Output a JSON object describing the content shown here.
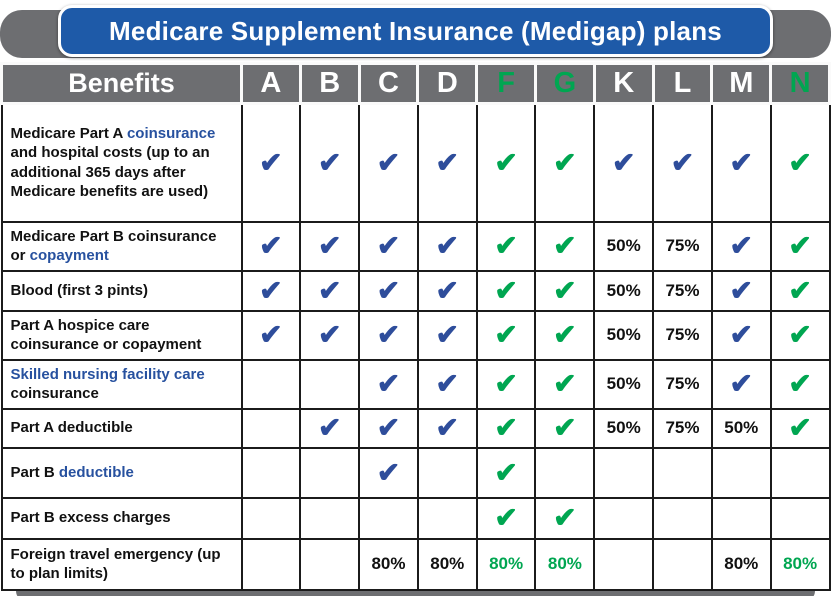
{
  "title": "Medicare Supplement Insurance (Medigap) plans",
  "header": {
    "benefits_label": "Benefits",
    "plans": [
      {
        "label": "A",
        "green": false
      },
      {
        "label": "B",
        "green": false
      },
      {
        "label": "C",
        "green": false
      },
      {
        "label": "D",
        "green": false
      },
      {
        "label": "F",
        "green": true
      },
      {
        "label": "G",
        "green": true
      },
      {
        "label": "K",
        "green": false
      },
      {
        "label": "L",
        "green": false
      },
      {
        "label": "M",
        "green": false
      },
      {
        "label": "N",
        "green": true
      }
    ]
  },
  "icons": {
    "check-icon": "✔"
  },
  "colors": {
    "banner_blue": "#1e5aa8",
    "header_gray": "#6d6e71",
    "check_blue": "#2e4d9b",
    "check_green": "#00a651",
    "label_blue": "#27519f"
  },
  "rows": [
    {
      "label": [
        {
          "text": "Medicare Part A ",
          "color": "black"
        },
        {
          "text": "coinsurance",
          "color": "blue"
        },
        {
          "text": " and hospital costs (up to an additional 365 days after Medicare benefits are used)",
          "color": "black"
        }
      ],
      "cells": [
        "check-blue",
        "check-blue",
        "check-blue",
        "check-blue",
        "check-green",
        "check-green",
        "check-blue",
        "check-blue",
        "check-blue",
        "check-green"
      ]
    },
    {
      "label": [
        {
          "text": "Medicare Part B coinsurance or ",
          "color": "black"
        },
        {
          "text": "copayment",
          "color": "blue"
        }
      ],
      "cells": [
        "check-blue",
        "check-blue",
        "check-blue",
        "check-blue",
        "check-green",
        "check-green",
        "50%",
        "75%",
        "check-blue",
        "check-green"
      ]
    },
    {
      "label": [
        {
          "text": "Blood (first 3 pints)",
          "color": "black"
        }
      ],
      "cells": [
        "check-blue",
        "check-blue",
        "check-blue",
        "check-blue",
        "check-green",
        "check-green",
        "50%",
        "75%",
        "check-blue",
        "check-green"
      ]
    },
    {
      "label": [
        {
          "text": "Part A hospice care coinsurance or copayment",
          "color": "black"
        }
      ],
      "cells": [
        "check-blue",
        "check-blue",
        "check-blue",
        "check-blue",
        "check-green",
        "check-green",
        "50%",
        "75%",
        "check-blue",
        "check-green"
      ]
    },
    {
      "label": [
        {
          "text": "Skilled nursing facility care",
          "color": "blue"
        },
        {
          "text": " coinsurance",
          "color": "black"
        }
      ],
      "cells": [
        "",
        "",
        "check-blue",
        "check-blue",
        "check-green",
        "check-green",
        "50%",
        "75%",
        "check-blue",
        "check-green"
      ]
    },
    {
      "label": [
        {
          "text": "Part A deductible",
          "color": "black"
        }
      ],
      "cells": [
        "",
        "check-blue",
        "check-blue",
        "check-blue",
        "check-green",
        "check-green",
        "50%",
        "75%",
        "50%",
        "check-green"
      ]
    },
    {
      "label": [
        {
          "text": "Part B ",
          "color": "black"
        },
        {
          "text": "deductible",
          "color": "blue"
        }
      ],
      "cells": [
        "",
        "",
        "check-blue",
        "",
        "check-green",
        "",
        "",
        "",
        "",
        ""
      ]
    },
    {
      "label": [
        {
          "text": "Part B excess charges",
          "color": "black"
        }
      ],
      "cells": [
        "",
        "",
        "",
        "",
        "check-green",
        "check-green",
        "",
        "",
        "",
        ""
      ]
    },
    {
      "label": [
        {
          "text": "Foreign travel emergency (up to plan limits)",
          "color": "black"
        }
      ],
      "cells": [
        "",
        "",
        "80%",
        "80%",
        "80%g",
        "80%g",
        "",
        "",
        "80%",
        "80%g"
      ]
    }
  ]
}
